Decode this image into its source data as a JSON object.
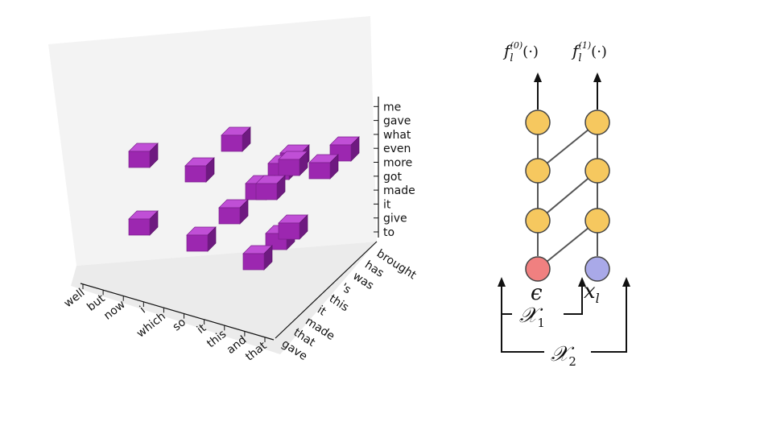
{
  "plot3d": {
    "x_axis_labels": [
      "well",
      "but",
      "now",
      "i",
      "which",
      "so",
      "it",
      "this",
      "and",
      "that"
    ],
    "y_axis_labels": [
      "gave",
      "that",
      "made",
      "it",
      "this",
      "'s",
      "was",
      "has",
      "brought"
    ],
    "z_axis_labels": [
      "to",
      "give",
      "it",
      "made",
      "got",
      "more",
      "even",
      "what",
      "gave",
      "me"
    ],
    "cube_color": "#9c27b0"
  },
  "network": {
    "outputs": [
      "f_l^(0)(·)",
      "f_l^(1)(·)"
    ],
    "inputs": [
      "ε",
      "x_l"
    ],
    "brackets": [
      "𝒳1",
      "𝒳2"
    ],
    "node_colors": {
      "hidden": "#f6c85f",
      "epsilon": "#f08080",
      "x_input": "#a9a9e8"
    }
  }
}
